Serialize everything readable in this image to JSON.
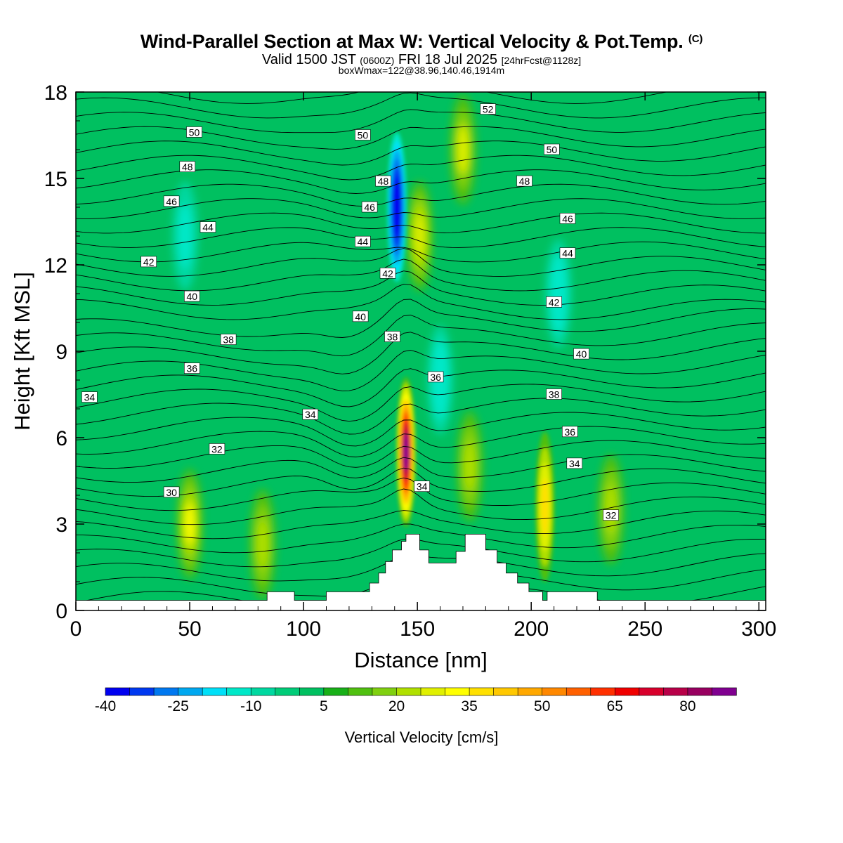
{
  "header": {
    "title": "Wind-Parallel Section at Max W: Vertical Velocity & Pot.Temp.",
    "copyright": "(C)",
    "valid_prefix": "Valid 1500 JST",
    "valid_utc": "(0600Z)",
    "valid_date": "FRI 18 Jul 2025",
    "forecast": "[24hrFcst@1128z]",
    "box_info": "boxWmax=122@38.96,140.46,1914m"
  },
  "chart_data": {
    "type": "heatmap",
    "xlabel": "Distance [nm]",
    "ylabel": "Height [Kft MSL]",
    "xlim": [
      0,
      303
    ],
    "ylim": [
      0,
      18
    ],
    "x_ticks": [
      0,
      50,
      100,
      150,
      200,
      250,
      300
    ],
    "y_ticks": [
      0,
      3,
      6,
      9,
      12,
      15,
      18
    ],
    "colorbar": {
      "title": "Vertical Velocity [cm/s]",
      "levels": [
        -40,
        -35,
        -30,
        -25,
        -20,
        -15,
        -10,
        -5,
        0,
        5,
        10,
        15,
        20,
        25,
        30,
        35,
        40,
        45,
        50,
        55,
        60,
        65,
        70,
        75,
        80,
        85,
        90
      ],
      "tick_labels": [
        "-40",
        "-25",
        "-10",
        "5",
        "20",
        "35",
        "50",
        "65",
        "80"
      ],
      "colors": [
        "#0000f0",
        "#0038f0",
        "#0078f0",
        "#00a8f0",
        "#00e0f8",
        "#00e8c8",
        "#00d8a0",
        "#00cc78",
        "#00c060",
        "#18b018",
        "#50c010",
        "#80d010",
        "#b0e000",
        "#e0f000",
        "#ffff00",
        "#ffe000",
        "#ffc800",
        "#ffa800",
        "#ff8800",
        "#ff6000",
        "#ff3000",
        "#f00000",
        "#d8002c",
        "#b80048",
        "#980060",
        "#800090"
      ]
    },
    "vertical_velocity_features": [
      {
        "name": "updraft",
        "x": 145,
        "y": 5.5,
        "peak": 85
      },
      {
        "name": "updraft",
        "x": 170,
        "y": 16,
        "peak": 25
      },
      {
        "name": "updraft",
        "x": 151,
        "y": 13,
        "peak": 28
      },
      {
        "name": "updraft",
        "x": 50,
        "y": 3,
        "peak": 30
      },
      {
        "name": "updraft",
        "x": 206,
        "y": 3.6,
        "peak": 35
      },
      {
        "name": "updraft",
        "x": 235,
        "y": 3.5,
        "peak": 22
      },
      {
        "name": "updraft",
        "x": 82,
        "y": 2.3,
        "peak": 22
      },
      {
        "name": "updraft",
        "x": 173,
        "y": 5,
        "peak": 20
      },
      {
        "name": "downdraft",
        "x": 141,
        "y": 14,
        "peak": -40
      },
      {
        "name": "downdraft",
        "x": 48,
        "y": 13,
        "peak": -12
      },
      {
        "name": "downdraft",
        "x": 212,
        "y": 11,
        "peak": -15
      },
      {
        "name": "downdraft",
        "x": 160,
        "y": 8,
        "peak": -15
      }
    ],
    "theta_contour_labels": [
      {
        "text": "50",
        "x": 52,
        "y": 16.6
      },
      {
        "text": "48",
        "x": 49,
        "y": 15.4
      },
      {
        "text": "46",
        "x": 42,
        "y": 14.2
      },
      {
        "text": "44",
        "x": 58,
        "y": 13.3
      },
      {
        "text": "42",
        "x": 32,
        "y": 12.1
      },
      {
        "text": "40",
        "x": 51,
        "y": 10.9
      },
      {
        "text": "38",
        "x": 67,
        "y": 9.4
      },
      {
        "text": "36",
        "x": 51,
        "y": 8.4
      },
      {
        "text": "34",
        "x": 6,
        "y": 7.4
      },
      {
        "text": "34",
        "x": 103,
        "y": 6.8
      },
      {
        "text": "32",
        "x": 62,
        "y": 5.6
      },
      {
        "text": "30",
        "x": 42,
        "y": 4.1
      },
      {
        "text": "50",
        "x": 126,
        "y": 16.5
      },
      {
        "text": "48",
        "x": 135,
        "y": 14.9
      },
      {
        "text": "46",
        "x": 129,
        "y": 14
      },
      {
        "text": "44",
        "x": 126,
        "y": 12.8
      },
      {
        "text": "42",
        "x": 137,
        "y": 11.7
      },
      {
        "text": "40",
        "x": 125,
        "y": 10.2
      },
      {
        "text": "38",
        "x": 139,
        "y": 9.5
      },
      {
        "text": "36",
        "x": 158,
        "y": 8.1
      },
      {
        "text": "34",
        "x": 152,
        "y": 4.3
      },
      {
        "text": "52",
        "x": 181,
        "y": 17.4
      },
      {
        "text": "50",
        "x": 209,
        "y": 16
      },
      {
        "text": "48",
        "x": 197,
        "y": 14.9
      },
      {
        "text": "46",
        "x": 216,
        "y": 13.6
      },
      {
        "text": "44",
        "x": 216,
        "y": 12.4
      },
      {
        "text": "42",
        "x": 210,
        "y": 10.7
      },
      {
        "text": "40",
        "x": 222,
        "y": 8.9
      },
      {
        "text": "38",
        "x": 210,
        "y": 7.5
      },
      {
        "text": "36",
        "x": 217,
        "y": 6.2
      },
      {
        "text": "34",
        "x": 219,
        "y": 5.1
      },
      {
        "text": "32",
        "x": 235,
        "y": 3.3
      }
    ],
    "terrain": [
      [
        0,
        0.35
      ],
      [
        84,
        0.35
      ],
      [
        84,
        0.65
      ],
      [
        96,
        0.65
      ],
      [
        96,
        0.35
      ],
      [
        110,
        0.35
      ],
      [
        110,
        0.65
      ],
      [
        129,
        0.65
      ],
      [
        129,
        0.95
      ],
      [
        133,
        0.95
      ],
      [
        133,
        1.3
      ],
      [
        136,
        1.3
      ],
      [
        136,
        1.7
      ],
      [
        139,
        1.7
      ],
      [
        139,
        2.1
      ],
      [
        143,
        2.1
      ],
      [
        143,
        2.4
      ],
      [
        145,
        2.4
      ],
      [
        145,
        2.65
      ],
      [
        151,
        2.65
      ],
      [
        151,
        2.1
      ],
      [
        155,
        2.1
      ],
      [
        155,
        1.65
      ],
      [
        167,
        1.65
      ],
      [
        167,
        2.05
      ],
      [
        171,
        2.05
      ],
      [
        171,
        2.65
      ],
      [
        180,
        2.65
      ],
      [
        180,
        2.1
      ],
      [
        185,
        2.1
      ],
      [
        185,
        1.65
      ],
      [
        189,
        1.65
      ],
      [
        189,
        1.3
      ],
      [
        194,
        1.3
      ],
      [
        194,
        0.95
      ],
      [
        199,
        0.95
      ],
      [
        199,
        0.65
      ],
      [
        205,
        0.65
      ],
      [
        205,
        0.35
      ],
      [
        207,
        0.35
      ],
      [
        207,
        0.65
      ],
      [
        229,
        0.65
      ],
      [
        229,
        0.35
      ],
      [
        303,
        0.35
      ]
    ]
  }
}
